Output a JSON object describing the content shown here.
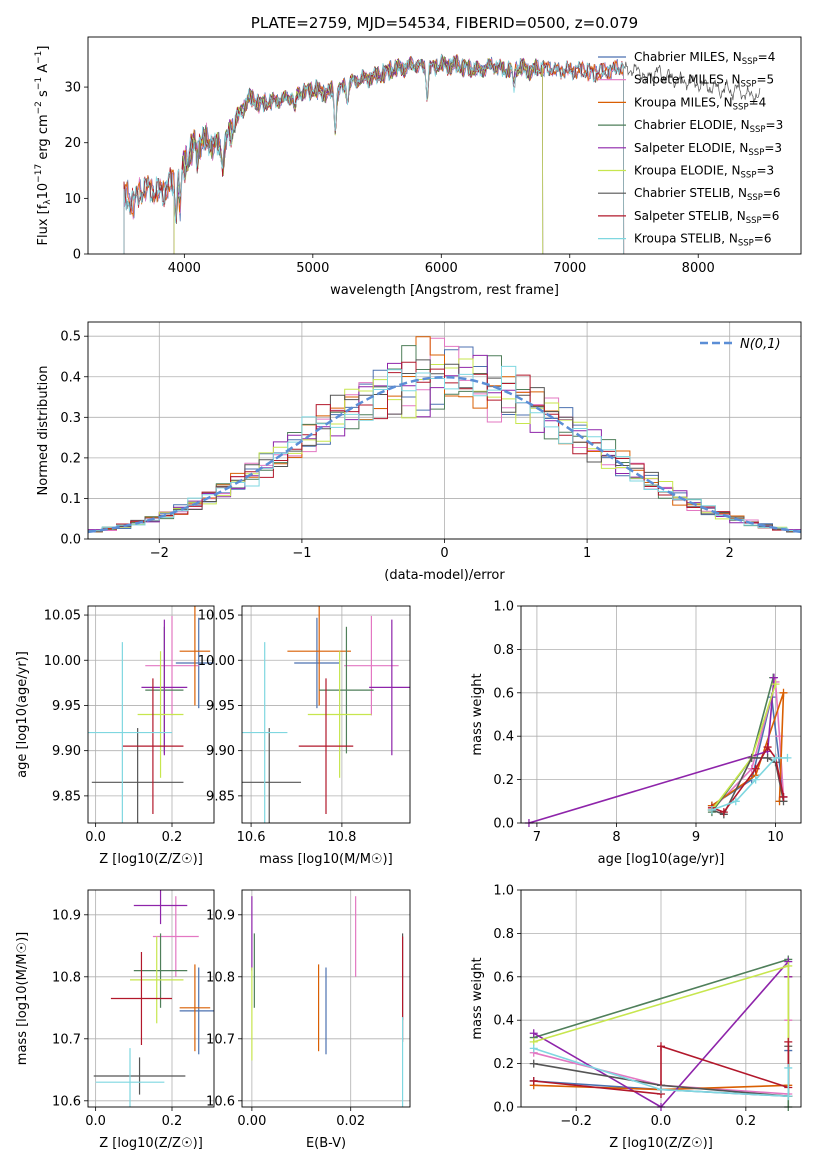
{
  "colors": {
    "Chabrier MILES": "#4c72b0",
    "Salpeter MILES": "#e377c2",
    "Kroupa MILES": "#d95f02",
    "Chabrier ELODIE": "#4f7f5a",
    "Salpeter ELODIE": "#8e24aa",
    "Kroupa ELODIE": "#c7e64e",
    "Chabrier STELIB": "#555555",
    "Salpeter STELIB": "#b2182b",
    "Kroupa STELIB": "#7fd7e0",
    "gauss": "#5b8ed6"
  },
  "chart_data": [
    {
      "id": "spectrum",
      "type": "line",
      "title": "PLATE=2759, MJD=54534, FIBERID=0500, z=0.079",
      "xlabel": "wavelength [Angstrom, rest frame]",
      "ylabel": "Flux [f_λ 10^-17 erg cm^-2 s^-1 A^-1]",
      "xlim": [
        3250,
        8800
      ],
      "ylim": [
        0,
        39
      ],
      "xticks": [
        4000,
        5000,
        6000,
        7000,
        8000
      ],
      "yticks": [
        0,
        10,
        20,
        30
      ],
      "legend": "upper-right",
      "x": [
        3530,
        3600,
        3700,
        3800,
        3900,
        4000,
        4100,
        4200,
        4300,
        4400,
        4500,
        4600,
        4700,
        4800,
        4900,
        5000,
        5100,
        5200,
        5300,
        5400,
        5500,
        5600,
        5700,
        5800,
        5900,
        6000,
        6100,
        6200,
        6300,
        6400,
        6500,
        6600,
        6700,
        6800,
        6900,
        7000,
        7100,
        7200,
        7300,
        7400,
        7500,
        7600,
        7700,
        7800,
        7900,
        8000,
        8100,
        8200,
        8300,
        8400,
        8480
      ],
      "y": [
        10,
        9.5,
        12,
        11,
        12.5,
        16,
        20.5,
        20,
        19,
        24,
        28,
        27,
        27.5,
        28,
        29,
        29.5,
        29,
        29.5,
        31,
        31.5,
        32,
        33,
        33.5,
        34,
        33.5,
        34,
        34,
        33.5,
        33,
        34,
        33,
        33.5,
        33,
        33.5,
        33,
        33,
        33,
        32.5,
        33,
        33.5,
        33,
        32.5,
        32.5,
        31.5,
        31,
        30.5,
        30,
        29.5,
        29.5,
        28.5,
        28.5
      ],
      "series": [
        {
          "name": "Chabrier MILES, N_SSP=4",
          "label_main": "Chabrier MILES, N",
          "sub": "SSP",
          "suffix": "=4",
          "end": 7420
        },
        {
          "name": "Salpeter MILES, N_SSP=5",
          "label_main": "Salpeter MILES, N",
          "sub": "SSP",
          "suffix": "=5",
          "end": 7420
        },
        {
          "name": "Kroupa MILES, N_SSP=4",
          "label_main": "Kroupa MILES, N",
          "sub": "SSP",
          "suffix": "=4",
          "end": 7420
        },
        {
          "name": "Chabrier ELODIE, N_SSP=3",
          "label_main": "Chabrier ELODIE, N",
          "sub": "SSP",
          "suffix": "=3",
          "start": 3920,
          "end": 6790
        },
        {
          "name": "Salpeter ELODIE, N_SSP=3",
          "label_main": "Salpeter ELODIE, N",
          "sub": "SSP",
          "suffix": "=3",
          "start": 3920,
          "end": 6790
        },
        {
          "name": "Kroupa ELODIE, N_SSP=3",
          "label_main": "Kroupa ELODIE, N",
          "sub": "SSP",
          "suffix": "=3",
          "start": 3920,
          "end": 6790
        },
        {
          "name": "Chabrier STELIB, N_SSP=6",
          "label_main": "Chabrier STELIB, N",
          "sub": "SSP",
          "suffix": "=6",
          "end": 8480
        },
        {
          "name": "Salpeter STELIB, N_SSP=6",
          "label_main": "Salpeter STELIB, N",
          "sub": "SSP",
          "suffix": "=6",
          "end": 7420
        },
        {
          "name": "Kroupa STELIB, N_SSP=6",
          "label_main": "Kroupa STELIB, N",
          "sub": "SSP",
          "suffix": "=6",
          "end": 7420
        }
      ]
    },
    {
      "id": "histogram",
      "type": "bar",
      "xlabel": "(data-model)/error",
      "ylabel": "Normed distribution",
      "xlim": [
        -2.5,
        2.5
      ],
      "ylim": [
        0,
        0.535
      ],
      "xticks": [
        -2,
        -1,
        0,
        1,
        2
      ],
      "yticks": [
        0.0,
        0.1,
        0.2,
        0.3,
        0.4,
        0.5
      ],
      "legend": "upper-right",
      "gauss_label": "N(0,1)",
      "bin_width": 0.1,
      "series_count": 9
    },
    {
      "id": "age-vs-Z",
      "type": "scatter",
      "xlabel": "Z [log10(Z/Z☉)]",
      "ylabel": "age  [log10(age/yr)]",
      "xlim": [
        -0.02,
        0.31
      ],
      "ylim": [
        9.82,
        10.06
      ],
      "xticks": [
        0.0,
        0.2
      ],
      "yticks": [
        9.85,
        9.9,
        9.95,
        10.0,
        10.05
      ],
      "points": [
        {
          "x": 0.27,
          "y": 9.997,
          "xe": 0.06,
          "ye": 0.05
        },
        {
          "x": 0.2,
          "y": 9.994,
          "xe": 0.07,
          "ye": 0.055
        },
        {
          "x": 0.26,
          "y": 10.01,
          "xe": 0.04,
          "ye": 0.06
        },
        {
          "x": 0.18,
          "y": 9.967,
          "xe": 0.05,
          "ye": 0.07
        },
        {
          "x": 0.18,
          "y": 9.97,
          "xe": 0.06,
          "ye": 0.075
        },
        {
          "x": 0.17,
          "y": 9.94,
          "xe": 0.06,
          "ye": 0.07
        },
        {
          "x": 0.11,
          "y": 9.865,
          "xe": 0.12,
          "ye": 0.06
        },
        {
          "x": 0.15,
          "y": 9.905,
          "xe": 0.08,
          "ye": 0.075
        },
        {
          "x": 0.07,
          "y": 9.92,
          "xe": 0.13,
          "ye": 0.1
        }
      ]
    },
    {
      "id": "age-vs-mass",
      "type": "scatter",
      "xlabel": "mass [log10(M/M☉)]",
      "ylabel": "",
      "xlim": [
        10.58,
        10.95
      ],
      "ylim": [
        9.82,
        10.06
      ],
      "xticks": [
        10.6,
        10.8
      ],
      "yticks": [
        9.85,
        9.9,
        9.95,
        10.0,
        10.05
      ],
      "points": [
        {
          "x": 10.745,
          "y": 9.997,
          "xe": 0.05,
          "ye": 0.05
        },
        {
          "x": 10.865,
          "y": 9.994,
          "xe": 0.06,
          "ye": 0.055
        },
        {
          "x": 10.75,
          "y": 10.01,
          "xe": 0.07,
          "ye": 0.06
        },
        {
          "x": 10.81,
          "y": 9.967,
          "xe": 0.06,
          "ye": 0.07
        },
        {
          "x": 10.91,
          "y": 9.97,
          "xe": 0.05,
          "ye": 0.075
        },
        {
          "x": 10.795,
          "y": 9.94,
          "xe": 0.07,
          "ye": 0.07
        },
        {
          "x": 10.64,
          "y": 9.865,
          "xe": 0.07,
          "ye": 0.06
        },
        {
          "x": 10.765,
          "y": 9.905,
          "xe": 0.06,
          "ye": 0.075
        },
        {
          "x": 10.63,
          "y": 9.92,
          "xe": 0.05,
          "ye": 0.1
        }
      ]
    },
    {
      "id": "mass-weight-vs-age",
      "type": "line",
      "xlabel": "age  [log10(age/yr)]",
      "ylabel": "mass weight",
      "xlim": [
        6.8,
        10.32
      ],
      "ylim": [
        0,
        1
      ],
      "xticks": [
        7,
        8,
        9,
        10
      ],
      "yticks": [
        0.0,
        0.2,
        0.4,
        0.6,
        0.8,
        1.0
      ],
      "grid": true,
      "series": [
        {
          "x": [
            9.2,
            9.7,
            9.95,
            10.1
          ],
          "y": [
            0.08,
            0.2,
            0.58,
            0.12
          ]
        },
        {
          "x": [
            9.2,
            9.7,
            10.0,
            10.05,
            10.1
          ],
          "y": [
            0.06,
            0.25,
            0.65,
            0.4,
            0.12
          ]
        },
        {
          "x": [
            9.2,
            9.75,
            10.1,
            10.05
          ],
          "y": [
            0.08,
            0.22,
            0.6,
            0.1
          ]
        },
        {
          "x": [
            9.2,
            9.7,
            9.97
          ],
          "y": [
            0.05,
            0.3,
            0.67
          ]
        },
        {
          "x": [
            6.9,
            9.9,
            9.98
          ],
          "y": [
            0.0,
            0.33,
            0.67
          ]
        },
        {
          "x": [
            9.2,
            9.7,
            10.0
          ],
          "y": [
            0.06,
            0.3,
            0.64
          ]
        },
        {
          "x": [
            9.2,
            9.35,
            9.7,
            9.9,
            10.0,
            10.1
          ],
          "y": [
            0.06,
            0.04,
            0.3,
            0.3,
            0.28,
            0.1
          ]
        },
        {
          "x": [
            9.2,
            9.35,
            9.75,
            9.9,
            10.0,
            10.1
          ],
          "y": [
            0.07,
            0.05,
            0.25,
            0.35,
            0.3,
            0.12
          ]
        },
        {
          "x": [
            9.2,
            9.5,
            9.75,
            10.0,
            10.15
          ],
          "y": [
            0.06,
            0.1,
            0.2,
            0.3,
            0.3
          ]
        }
      ]
    },
    {
      "id": "mass-vs-Z",
      "type": "scatter",
      "xlabel": "Z [log10(Z/Z☉)]",
      "ylabel": "mass [log10(M/M☉)]",
      "xlim": [
        -0.02,
        0.31
      ],
      "ylim": [
        10.59,
        10.94
      ],
      "xticks": [
        0.0,
        0.2
      ],
      "yticks": [
        10.6,
        10.7,
        10.8,
        10.9
      ],
      "points": [
        {
          "x": 0.27,
          "y": 10.745,
          "xe": 0.05,
          "ye": 0.07
        },
        {
          "x": 0.21,
          "y": 10.865,
          "xe": 0.06,
          "ye": 0.065
        },
        {
          "x": 0.26,
          "y": 10.75,
          "xe": 0.04,
          "ye": 0.07
        },
        {
          "x": 0.17,
          "y": 10.81,
          "xe": 0.07,
          "ye": 0.06
        },
        {
          "x": 0.17,
          "y": 10.915,
          "xe": 0.07,
          "ye": 0.03
        },
        {
          "x": 0.16,
          "y": 10.795,
          "xe": 0.07,
          "ye": 0.07
        },
        {
          "x": 0.115,
          "y": 10.64,
          "xe": 0.12,
          "ye": 0.03
        },
        {
          "x": 0.12,
          "y": 10.765,
          "xe": 0.08,
          "ye": 0.075
        },
        {
          "x": 0.09,
          "y": 10.63,
          "xe": 0.09,
          "ye": 0.055
        }
      ]
    },
    {
      "id": "mass-vs-EBV",
      "type": "scatter",
      "xlabel": "E(B-V)",
      "ylabel": "",
      "xlim": [
        -0.002,
        0.032
      ],
      "ylim": [
        10.59,
        10.94
      ],
      "xticks": [
        0.0,
        0.02
      ],
      "yticks": [
        10.6,
        10.7,
        10.8,
        10.9
      ],
      "points": [
        {
          "x": 0.015,
          "y": 10.745,
          "xe": 0,
          "ye": 0.07
        },
        {
          "x": 0.021,
          "y": 10.865,
          "xe": 0,
          "ye": 0.065
        },
        {
          "x": 0.0135,
          "y": 10.75,
          "xe": 0,
          "ye": 0.07
        },
        {
          "x": 0.0005,
          "y": 10.81,
          "xe": 0,
          "ye": 0.06
        },
        {
          "x": 0.0,
          "y": 10.87,
          "xe": 0,
          "ye": 0.06
        },
        {
          "x": 0.0,
          "y": 10.74,
          "xe": 0,
          "ye": 0.075
        },
        {
          "x": 0.0305,
          "y": 10.8,
          "xe": 0,
          "ye": 0.07
        },
        {
          "x": 0.0305,
          "y": 10.78,
          "xe": 0,
          "ye": 0.085
        },
        {
          "x": 0.0305,
          "y": 10.66,
          "xe": 0,
          "ye": 0.075
        }
      ]
    },
    {
      "id": "mass-weight-vs-Z",
      "type": "line",
      "xlabel": "Z [log10(Z/Z☉)]",
      "ylabel": "mass weight",
      "xlim": [
        -0.33,
        0.33
      ],
      "ylim": [
        0,
        1
      ],
      "xticks": [
        -0.2,
        0.0,
        0.2
      ],
      "yticks": [
        0.0,
        0.2,
        0.4,
        0.6,
        0.8,
        1.0
      ],
      "grid": true,
      "series": [
        {
          "x": [
            -0.3,
            0.0,
            0.3,
            0.3
          ],
          "y": [
            0.12,
            0.08,
            0.05,
            0.26
          ]
        },
        {
          "x": [
            -0.3,
            0.0,
            0.3,
            0.3
          ],
          "y": [
            0.25,
            0.1,
            0.06,
            0.4
          ]
        },
        {
          "x": [
            -0.3,
            0.0,
            0.3,
            0.3
          ],
          "y": [
            0.1,
            0.08,
            0.1,
            0.6
          ]
        },
        {
          "x": [
            -0.3,
            0.3,
            0.3
          ],
          "y": [
            0.32,
            0.68,
            0.0
          ]
        },
        {
          "x": [
            -0.3,
            0.0,
            0.3,
            0.3
          ],
          "y": [
            0.34,
            0.0,
            0.67,
            0.6
          ]
        },
        {
          "x": [
            -0.3,
            0.3,
            0.3
          ],
          "y": [
            0.3,
            0.65,
            0.05
          ]
        },
        {
          "x": [
            -0.3,
            0.0,
            0.3,
            0.3
          ],
          "y": [
            0.2,
            0.1,
            0.05,
            0.28
          ]
        },
        {
          "x": [
            -0.3,
            0.0,
            0.0,
            0.3,
            0.3
          ],
          "y": [
            0.12,
            0.06,
            0.28,
            0.09,
            0.3
          ]
        },
        {
          "x": [
            -0.3,
            0.0,
            0.3,
            0.3
          ],
          "y": [
            0.27,
            0.08,
            0.05,
            0.18
          ]
        }
      ]
    }
  ]
}
